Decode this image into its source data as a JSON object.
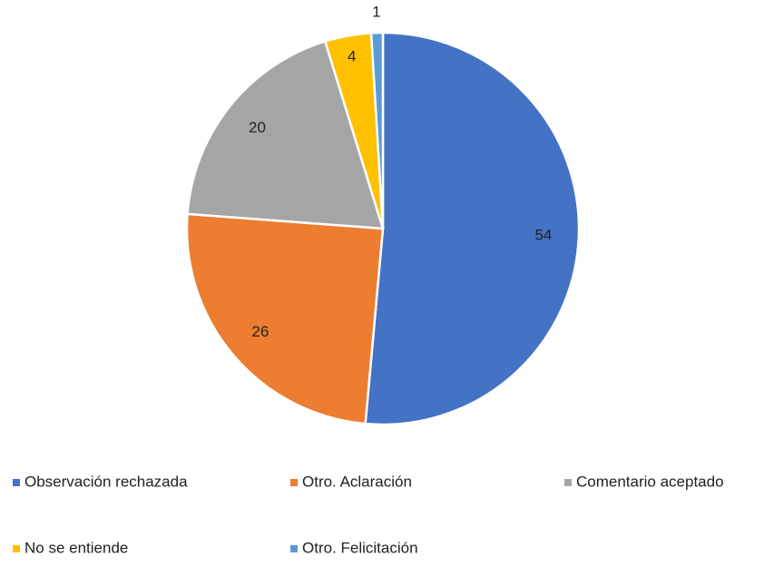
{
  "chart_data": {
    "type": "pie",
    "categories": [
      "Observación rechazada",
      "Otro. Aclaración",
      "Comentario aceptado",
      "No se entiende",
      "Otro. Felicitación"
    ],
    "values": [
      54,
      26,
      20,
      4,
      1
    ],
    "colors": [
      "#4472c4",
      "#ed7d31",
      "#a5a5a5",
      "#ffc000",
      "#5b9bd5"
    ],
    "legend": "bottom"
  }
}
